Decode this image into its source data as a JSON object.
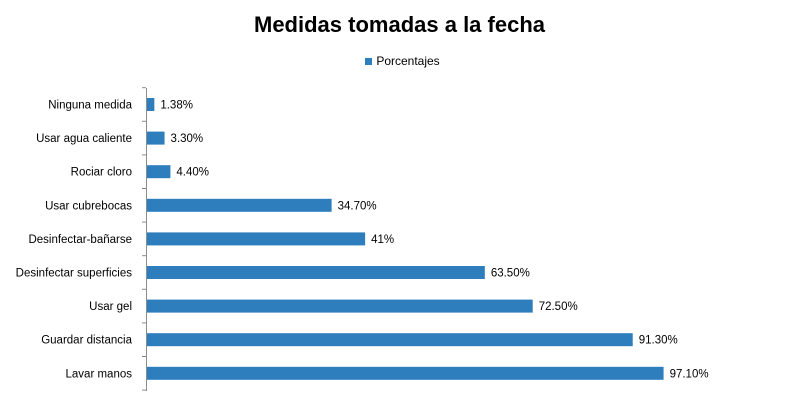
{
  "chart_data": {
    "type": "bar",
    "orientation": "horizontal",
    "title": "Medidas tomadas a la fecha",
    "legend_position": "top",
    "series": [
      {
        "name": "Porcentajes",
        "color": "#2e7dbd",
        "categories": [
          "Ninguna medida",
          "Usar agua caliente",
          "Rociar cloro",
          "Usar cubrebocas",
          "Desinfectar-bañarse",
          "Desinfectar superficies",
          "Usar gel",
          "Guardar distancia",
          "Lavar manos"
        ],
        "values": [
          1.38,
          3.3,
          4.4,
          34.7,
          41,
          63.5,
          72.5,
          91.3,
          97.1
        ],
        "value_labels": [
          "1.38%",
          "3.30%",
          "4.40%",
          "34.70%",
          "41%",
          "63.50%",
          "72.50%",
          "91.30%",
          "97.10%"
        ]
      }
    ],
    "xlim": [
      0,
      100
    ],
    "grid": false
  }
}
